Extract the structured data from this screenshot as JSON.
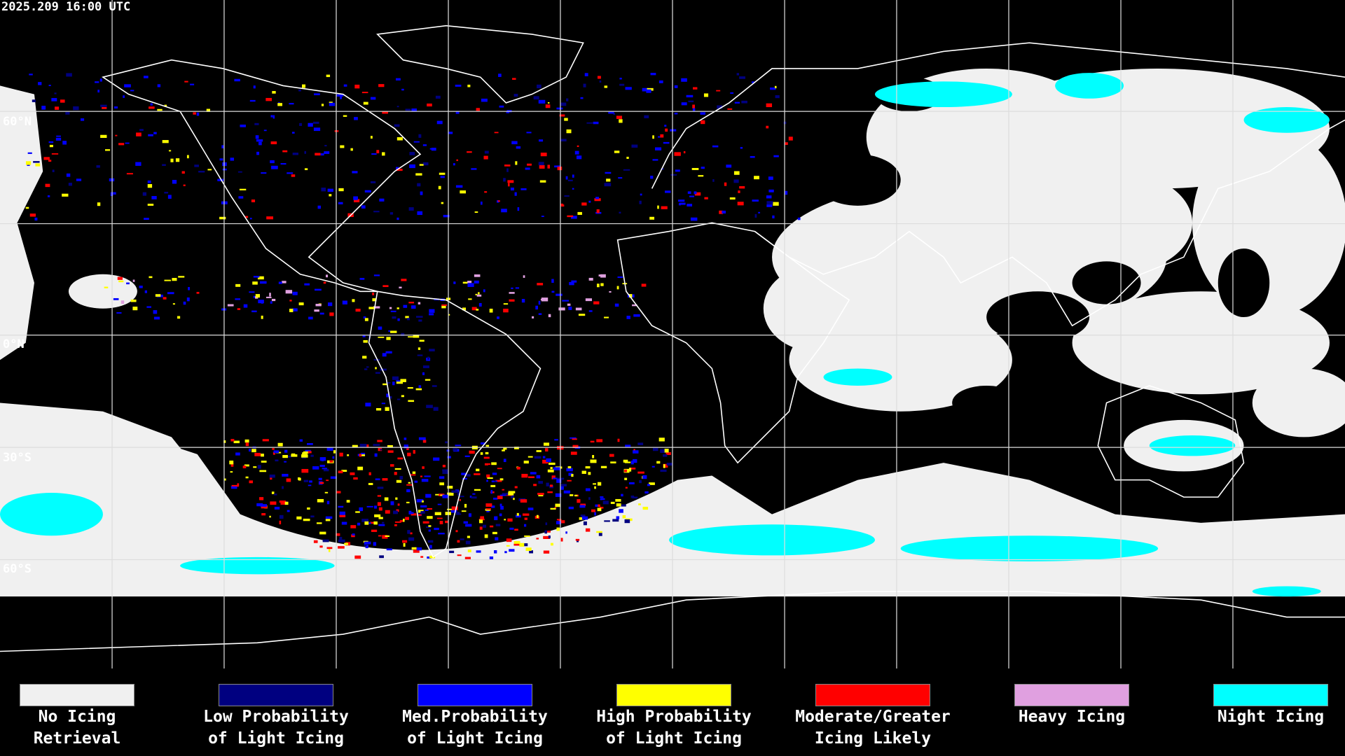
{
  "header": {
    "timestamp": "2025.209 16:00 UTC"
  },
  "map": {
    "latitude_labels": [
      "60°N",
      "0°N",
      "30°S",
      "60°S"
    ]
  },
  "legend": {
    "items": [
      {
        "lines": [
          "No Icing",
          "Retrieval"
        ],
        "color": "#f0f0f0"
      },
      {
        "lines": [
          "Low Probability",
          "of Light Icing"
        ],
        "color": "#000080"
      },
      {
        "lines": [
          "Med.Probability",
          "of Light Icing"
        ],
        "color": "#0000ff"
      },
      {
        "lines": [
          "High Probability",
          "of Light Icing"
        ],
        "color": "#ffff00"
      },
      {
        "lines": [
          "Moderate/Greater",
          "Icing Likely"
        ],
        "color": "#ff0000"
      },
      {
        "lines": [
          "Heavy Icing"
        ],
        "color": "#e0a0e0"
      },
      {
        "lines": [
          "Night Icing"
        ],
        "color": "#00ffff"
      }
    ]
  }
}
